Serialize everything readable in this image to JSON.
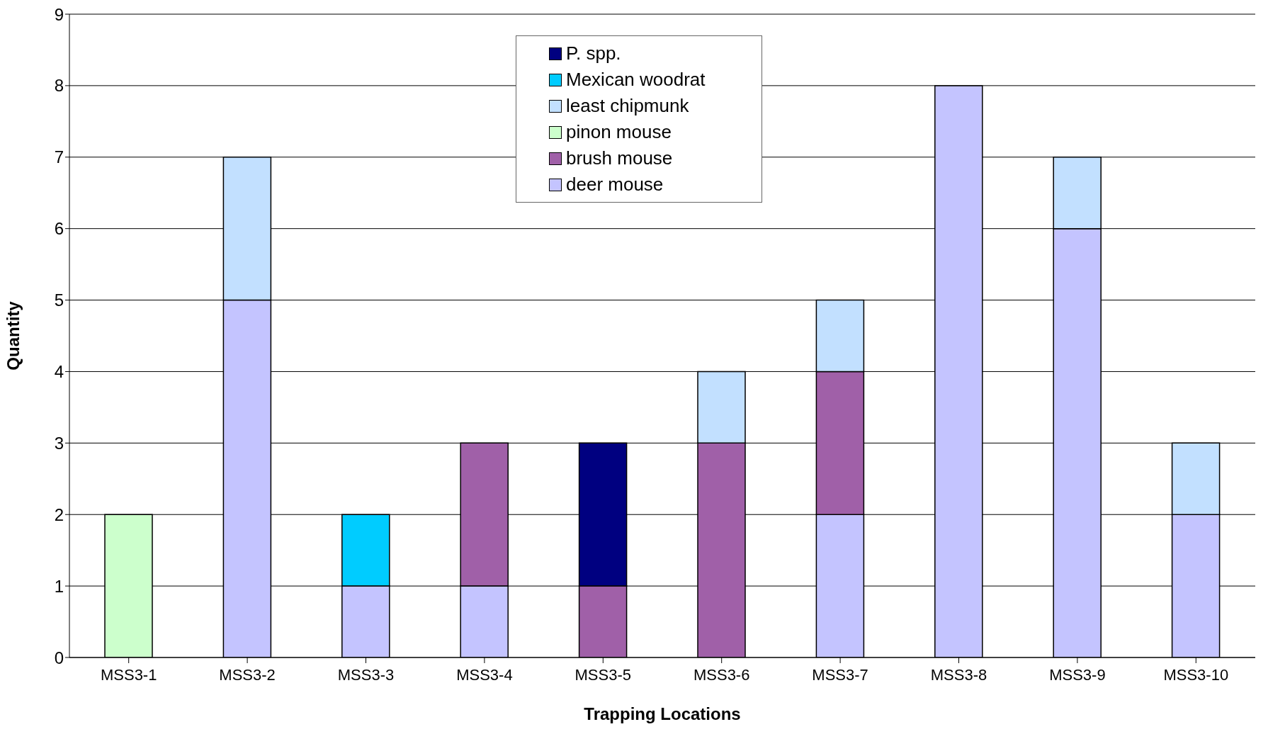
{
  "chart_data": {
    "type": "bar",
    "stacked": true,
    "xlabel": "Trapping Locations",
    "ylabel": "Quantity",
    "categories": [
      "MSS3-1",
      "MSS3-2",
      "MSS3-3",
      "MSS3-4",
      "MSS3-5",
      "MSS3-6",
      "MSS3-7",
      "MSS3-8",
      "MSS3-9",
      "MSS3-10"
    ],
    "series": [
      {
        "name": "deer mouse",
        "color": "#c4c4ff",
        "values": [
          0,
          5,
          1,
          1,
          0,
          0,
          2,
          8,
          6,
          2
        ]
      },
      {
        "name": "brush mouse",
        "color": "#a060a8",
        "values": [
          0,
          0,
          0,
          2,
          1,
          3,
          2,
          0,
          0,
          0
        ]
      },
      {
        "name": "pinon mouse",
        "color": "#ccffcc",
        "values": [
          2,
          0,
          0,
          0,
          0,
          0,
          0,
          0,
          0,
          0
        ]
      },
      {
        "name": "least chipmunk",
        "color": "#c2e0ff",
        "values": [
          0,
          2,
          0,
          0,
          0,
          1,
          1,
          0,
          1,
          1
        ]
      },
      {
        "name": "Mexican woodrat",
        "color": "#00ccff",
        "values": [
          0,
          0,
          1,
          0,
          0,
          0,
          0,
          0,
          0,
          0
        ]
      },
      {
        "name": "P. spp.",
        "color": "#000080",
        "values": [
          0,
          0,
          0,
          0,
          2,
          0,
          0,
          0,
          0,
          0
        ]
      }
    ],
    "ylim": [
      0,
      9
    ],
    "yticks": [
      0,
      1,
      2,
      3,
      4,
      5,
      6,
      7,
      8,
      9
    ],
    "grid": "y",
    "legend": "top"
  }
}
